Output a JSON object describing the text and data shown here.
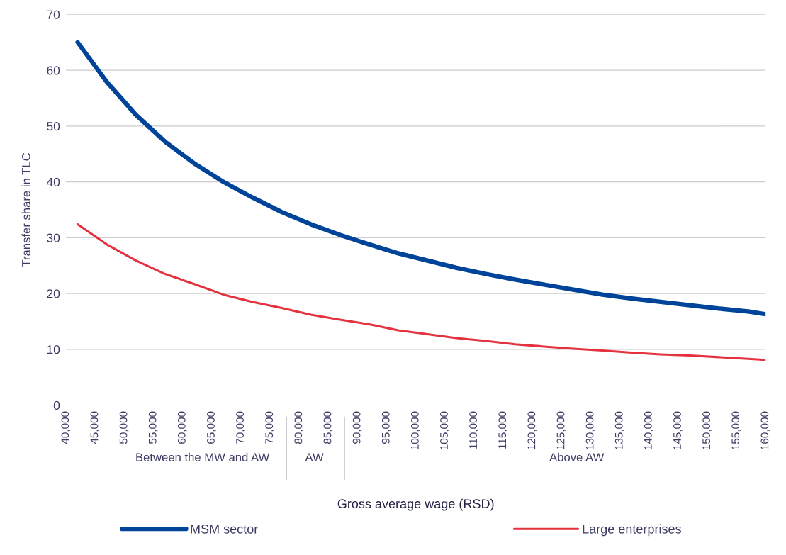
{
  "chart_data": {
    "type": "line",
    "xlabel": "Gross average wage (RSD)",
    "ylabel": "Transfer share in TLC",
    "x": [
      42000,
      47000,
      52000,
      57000,
      62000,
      67000,
      72000,
      77000,
      82000,
      87000,
      92000,
      97000,
      102000,
      107000,
      112000,
      117000,
      122000,
      127000,
      132000,
      137000,
      142000,
      147000,
      152000,
      157000,
      160000
    ],
    "series": [
      {
        "name": "MSM sector",
        "color": "#00449a",
        "values": [
          65.0,
          57.9,
          52.0,
          47.2,
          43.3,
          40.0,
          37.2,
          34.6,
          32.4,
          30.5,
          28.8,
          27.2,
          25.9,
          24.6,
          23.5,
          22.5,
          21.6,
          20.7,
          19.8,
          19.1,
          18.5,
          17.9,
          17.3,
          16.8,
          16.3
        ]
      },
      {
        "name": "Large enterprises",
        "color": "#e4323f",
        "values": [
          32.4,
          28.8,
          25.9,
          23.5,
          21.7,
          19.8,
          18.5,
          17.4,
          16.2,
          15.3,
          14.5,
          13.4,
          12.7,
          12.0,
          11.5,
          10.9,
          10.5,
          10.1,
          9.8,
          9.4,
          9.1,
          8.9,
          8.6,
          8.3,
          8.1
        ]
      }
    ],
    "xlim": [
      40000,
      160000
    ],
    "xticks": [
      {
        "value": 40000,
        "label": "40,000"
      },
      {
        "value": 45000,
        "label": "45,000"
      },
      {
        "value": 50000,
        "label": "50,000"
      },
      {
        "value": 55000,
        "label": "55,000"
      },
      {
        "value": 60000,
        "label": "60,000"
      },
      {
        "value": 65000,
        "label": "65,000"
      },
      {
        "value": 70000,
        "label": "70,000"
      },
      {
        "value": 75000,
        "label": "75,000"
      },
      {
        "value": 80000,
        "label": "80,000"
      },
      {
        "value": 85000,
        "label": "85,000"
      },
      {
        "value": 90000,
        "label": "90,000"
      },
      {
        "value": 95000,
        "label": "95,000"
      },
      {
        "value": 100000,
        "label": "100,000"
      },
      {
        "value": 105000,
        "label": "105,000"
      },
      {
        "value": 110000,
        "label": "110,000"
      },
      {
        "value": 115000,
        "label": "115,000"
      },
      {
        "value": 120000,
        "label": "120,000"
      },
      {
        "value": 125000,
        "label": "125,000"
      },
      {
        "value": 130000,
        "label": "130,000"
      },
      {
        "value": 135000,
        "label": "135,000"
      },
      {
        "value": 140000,
        "label": "140,000"
      },
      {
        "value": 145000,
        "label": "145,000"
      },
      {
        "value": 150000,
        "label": "150,000"
      },
      {
        "value": 155000,
        "label": "155,000"
      },
      {
        "value": 160000,
        "label": "160,000"
      }
    ],
    "ylim": [
      0,
      70
    ],
    "yticks": [
      0,
      10,
      20,
      30,
      40,
      50,
      60,
      70
    ],
    "annotations": [
      "Between the MW and AW",
      "AW",
      "Above AW"
    ],
    "grid": "y",
    "legend": "bottom",
    "marker": "none",
    "line_style": "solid"
  }
}
